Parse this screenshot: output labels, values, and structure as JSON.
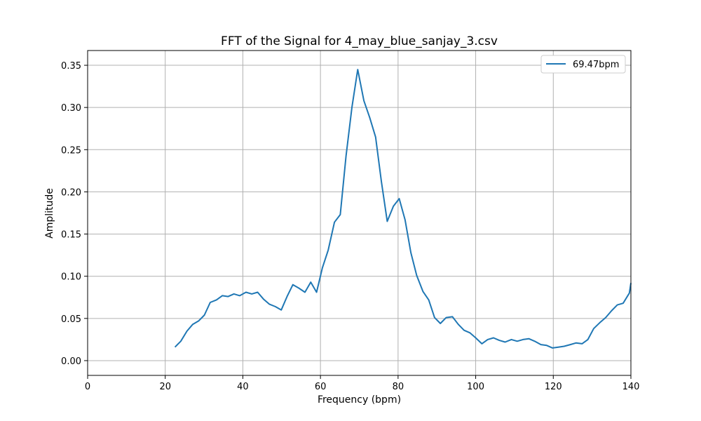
{
  "chart_data": {
    "type": "line",
    "title": "FFT of the Signal for 4_may_blue_sanjay_3.csv",
    "xlabel": "Frequency (bpm)",
    "ylabel": "Amplitude",
    "xlim": [
      0,
      140
    ],
    "ylim": [
      -0.0175,
      0.3675
    ],
    "xticks": [
      0,
      20,
      40,
      60,
      80,
      100,
      120,
      140
    ],
    "yticks": [
      0.0,
      0.05,
      0.1,
      0.15,
      0.2,
      0.25,
      0.3,
      0.35
    ],
    "ytick_labels": [
      "0.00",
      "0.05",
      "0.10",
      "0.15",
      "0.20",
      "0.25",
      "0.30",
      "0.35"
    ],
    "grid": true,
    "legend_position": "upper right",
    "series": [
      {
        "name": "69.47bpm",
        "color": "#1f77b4",
        "x": [
          22.5,
          24.0,
          25.6,
          27.1,
          28.6,
          30.1,
          31.6,
          33.2,
          34.7,
          36.2,
          37.7,
          39.2,
          40.8,
          42.3,
          43.8,
          45.3,
          46.8,
          48.4,
          49.9,
          51.4,
          52.9,
          54.4,
          56.0,
          57.5,
          59.0,
          60.5,
          62.0,
          63.6,
          65.1,
          66.6,
          68.1,
          69.6,
          71.2,
          72.7,
          74.2,
          75.7,
          77.2,
          78.8,
          80.3,
          81.8,
          83.3,
          84.8,
          86.4,
          87.9,
          89.4,
          90.9,
          92.4,
          94.0,
          95.5,
          97.0,
          98.5,
          100.0,
          101.6,
          103.1,
          104.6,
          106.1,
          107.6,
          109.2,
          110.7,
          112.2,
          113.7,
          115.2,
          116.8,
          118.3,
          119.8,
          121.3,
          122.8,
          124.4,
          125.9,
          127.4,
          128.9,
          130.4,
          132.0,
          133.5,
          135.0,
          136.5,
          138.0,
          139.6,
          140.0
        ],
        "y": [
          0.016,
          0.023,
          0.035,
          0.043,
          0.047,
          0.054,
          0.069,
          0.072,
          0.077,
          0.076,
          0.079,
          0.077,
          0.081,
          0.079,
          0.081,
          0.073,
          0.067,
          0.064,
          0.06,
          0.076,
          0.09,
          0.086,
          0.081,
          0.093,
          0.081,
          0.11,
          0.131,
          0.164,
          0.173,
          0.243,
          0.3,
          0.345,
          0.308,
          0.288,
          0.265,
          0.212,
          0.165,
          0.183,
          0.192,
          0.167,
          0.128,
          0.101,
          0.082,
          0.072,
          0.051,
          0.044,
          0.051,
          0.052,
          0.043,
          0.036,
          0.033,
          0.027,
          0.02,
          0.025,
          0.027,
          0.024,
          0.022,
          0.025,
          0.023,
          0.025,
          0.026,
          0.023,
          0.019,
          0.018,
          0.015,
          0.016,
          0.017,
          0.019,
          0.021,
          0.02,
          0.025,
          0.038,
          0.045,
          0.051,
          0.059,
          0.066,
          0.068,
          0.08,
          0.092
        ]
      }
    ]
  }
}
